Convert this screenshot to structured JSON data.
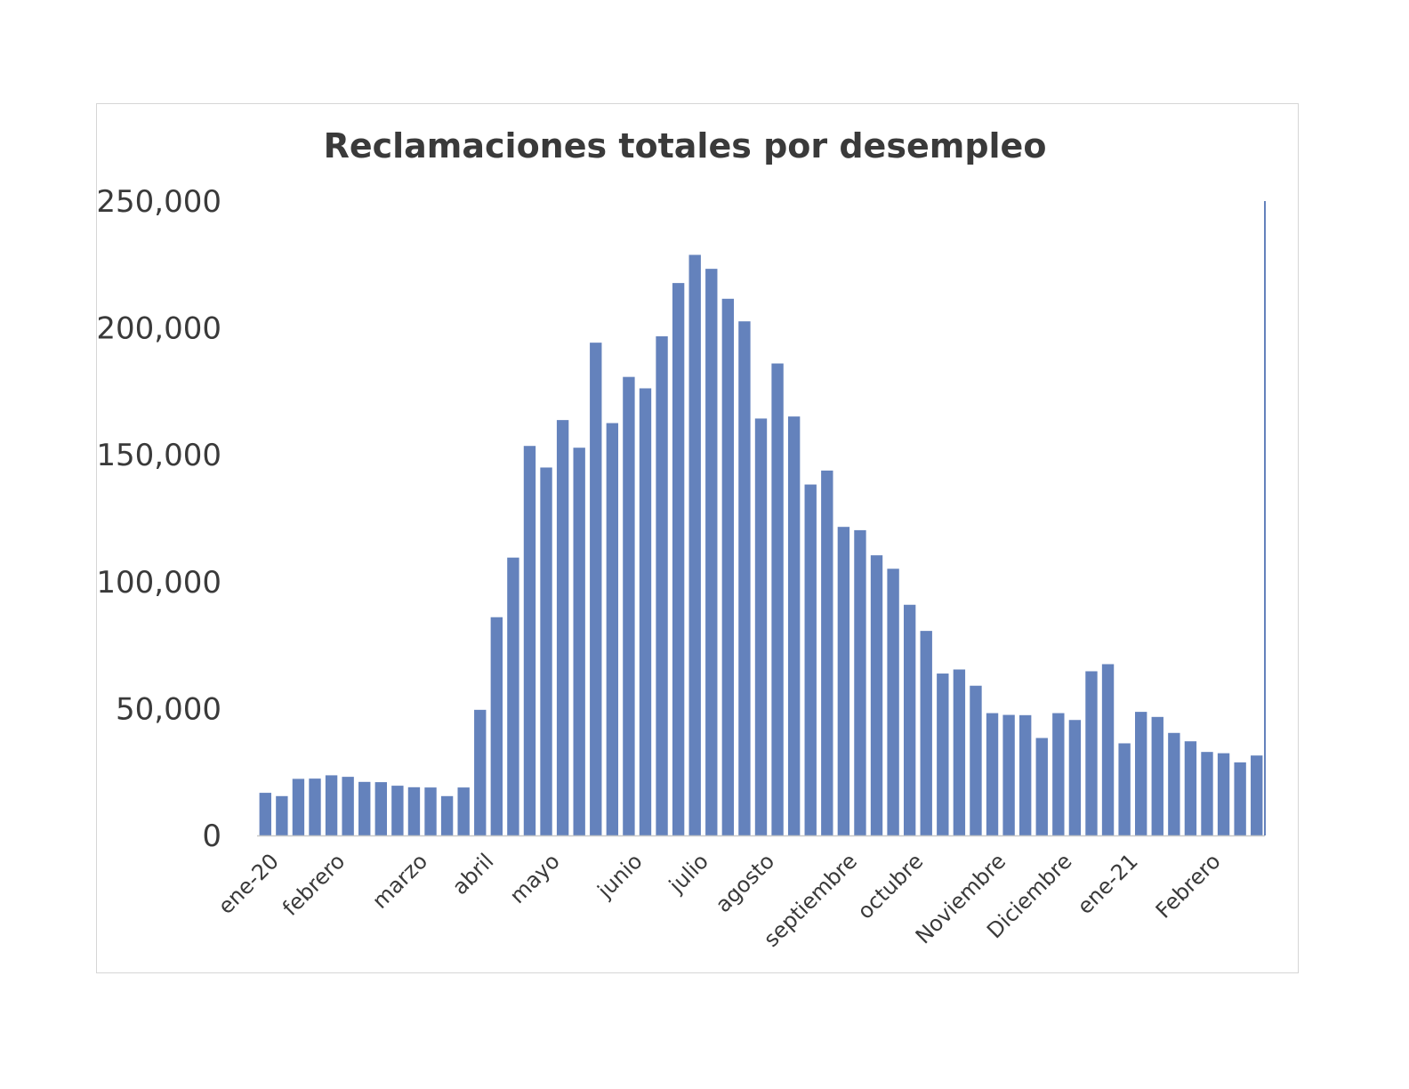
{
  "chart_data": {
    "type": "bar",
    "title": "Reclamaciones totales por desempleo",
    "xlabel": "",
    "ylabel": "",
    "ylim": [
      0,
      250000
    ],
    "y_ticks": [
      0,
      50000,
      100000,
      150000,
      200000,
      250000
    ],
    "y_tick_labels": [
      "0",
      "50,000",
      "100,000",
      "150,000",
      "200,000",
      "250,000"
    ],
    "x_tick_labels": [
      {
        "label": "ene-20",
        "index": 0
      },
      {
        "label": "febrero",
        "index": 4
      },
      {
        "label": "marzo",
        "index": 9
      },
      {
        "label": "abril",
        "index": 13
      },
      {
        "label": "mayo",
        "index": 17
      },
      {
        "label": "junio",
        "index": 22
      },
      {
        "label": "julio",
        "index": 26
      },
      {
        "label": "agosto",
        "index": 30
      },
      {
        "label": "septiembre",
        "index": 35
      },
      {
        "label": "octubre",
        "index": 39
      },
      {
        "label": "Noviembre",
        "index": 44
      },
      {
        "label": "Diciembre",
        "index": 48
      },
      {
        "label": "ene-21",
        "index": 52
      },
      {
        "label": "Febrero",
        "index": 57
      }
    ],
    "color": "#6482bc",
    "grid": false,
    "legend": "none",
    "values": [
      16800,
      15500,
      22300,
      22400,
      23700,
      23100,
      21100,
      21000,
      19600,
      19000,
      18900,
      15500,
      18900,
      49500,
      86000,
      109500,
      153500,
      145000,
      163700,
      152800,
      194200,
      162500,
      180700,
      176200,
      196700,
      217700,
      228800,
      223300,
      211500,
      202600,
      164300,
      186000,
      165100,
      138300,
      143800,
      121600,
      120300,
      110400,
      105100,
      90900,
      80600,
      63800,
      65400,
      59000,
      48200,
      47500,
      47400,
      38400,
      48200,
      45500,
      64700,
      67500,
      36300,
      48700,
      46700,
      40400,
      37100,
      32900,
      32400,
      28800,
      31500
    ]
  }
}
